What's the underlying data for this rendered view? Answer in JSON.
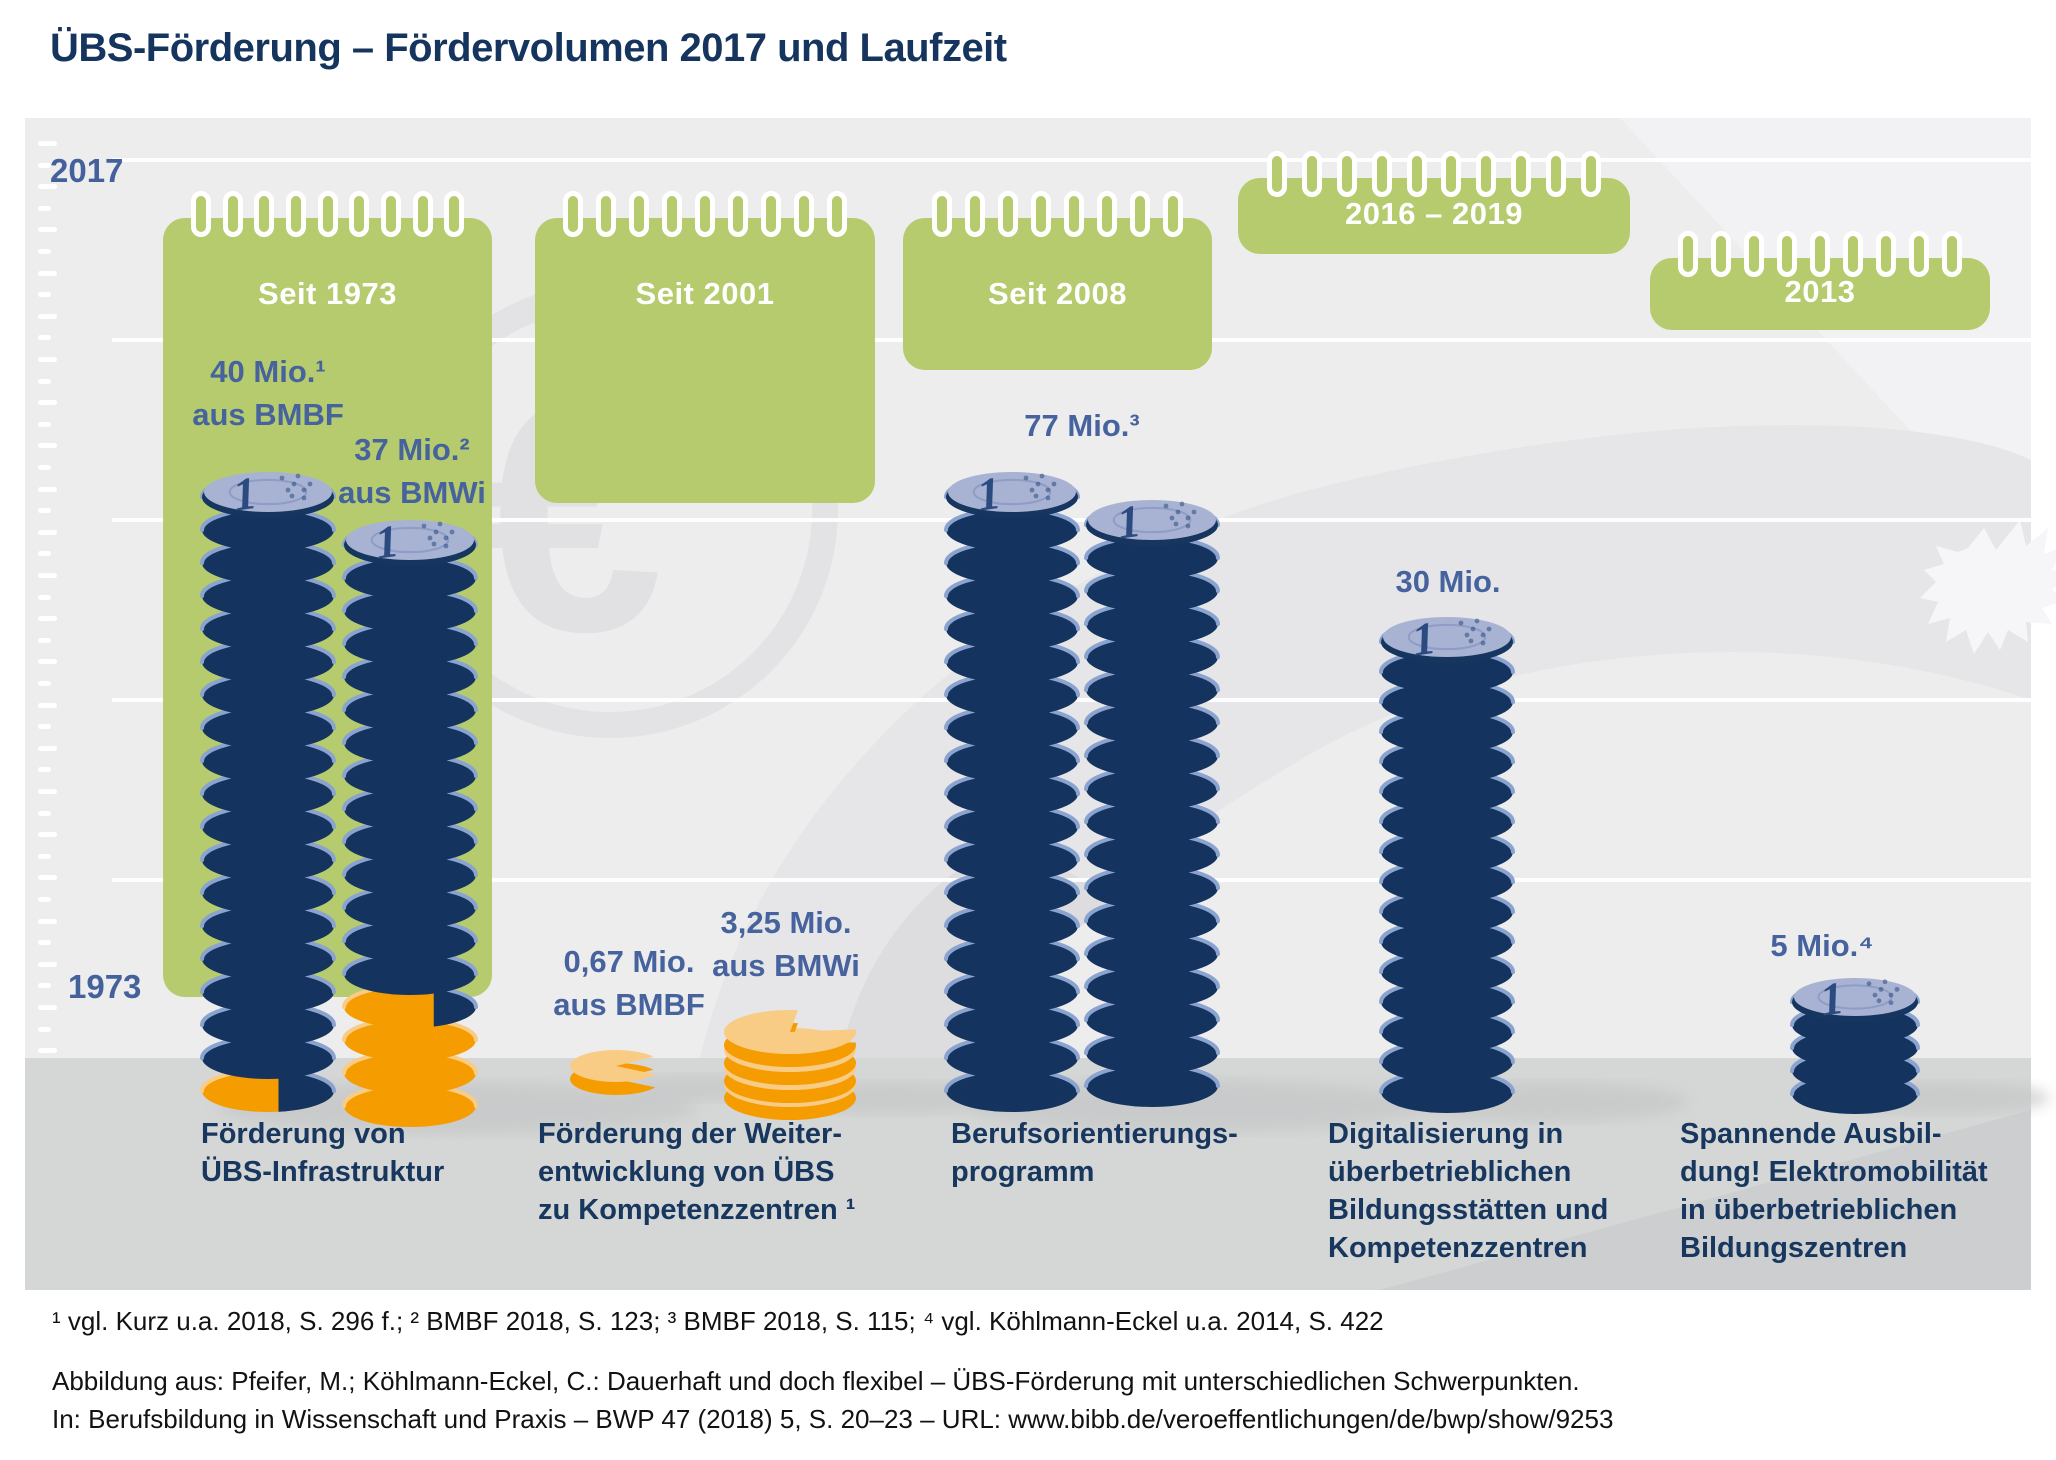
{
  "page": {
    "title": "ÜBS-Förderung – Fördervolumen 2017 und Laufzeit",
    "footnote": "¹ vgl. Kurz u.a. 2018, S. 296 f.; ² BMBF 2018, S. 123; ³ BMBF 2018, S. 115; ⁴ vgl. Köhlmann-Eckel u.a. 2014, S. 422",
    "source_line1": "Abbildung aus: Pfeifer, M.; Köhlmann-Eckel, C.: Dauerhaft und doch flexibel – ÜBS-Förderung mit unterschiedlichen Schwerpunkten.",
    "source_line2": "In: Berufsbildung in Wissenschaft und Praxis – BWP 47 (2018) 5, S. 20–23 – URL: www.bibb.de/veroeffentlichungen/de/bwp/show/9253"
  },
  "colors": {
    "accent_green": "#b5cb6d",
    "title_navy": "#16355e",
    "label_blue": "#47639e",
    "category_navy": "#17375e",
    "coin_navy": "#14345f",
    "coin_rim_navy": "#17365f",
    "coin_arc_blue": "#8ba3cf",
    "coin_face_blue": "#a8b3d3",
    "coin_face_detail": "#2a4a80",
    "coin_orange": "#f59c00",
    "coin_orange_face": "#f8cc85",
    "bg_sky": "#ededee",
    "bg_floor": "#d5d6d6",
    "shadow_gray": "#c6c7c8"
  },
  "chart_data": {
    "type": "bar",
    "subtype": "pictorial coin-stack infographic",
    "title": "ÜBS-Förderung – Fördervolumen 2017 und Laufzeit",
    "unit": "Mio. Euro (Fördervolumen 2017)",
    "y_axis": {
      "top": "2017",
      "bottom": "1973"
    },
    "periods": [
      {
        "label": "Seit 1973"
      },
      {
        "label": "Seit 2001"
      },
      {
        "label": "Seit 2008"
      },
      {
        "label": "2016 – 2019"
      },
      {
        "label": "2013"
      }
    ],
    "groups": [
      {
        "category": [
          "Förderung von",
          "ÜBS-Infrastruktur"
        ],
        "period": "Seit 1973",
        "values": [
          {
            "label_lines": [
              "40 Mio.¹",
              "aus BMBF"
            ],
            "value_mio": 40,
            "funder": "BMBF"
          },
          {
            "label_lines": [
              "37 Mio.²",
              "aus BMWi"
            ],
            "value_mio": 37,
            "funder": "BMWi"
          }
        ]
      },
      {
        "category": [
          "Förderung der Weiter-",
          "entwicklung von ÜBS",
          "zu Kompetenzzentren ¹"
        ],
        "period": "Seit 2001",
        "values": [
          {
            "label_lines": [
              "0,67 Mio.",
              "aus BMBF"
            ],
            "value_mio": 0.67,
            "funder": "BMBF"
          },
          {
            "label_lines": [
              "3,25 Mio.",
              "aus BMWi"
            ],
            "value_mio": 3.25,
            "funder": "BMWi"
          }
        ]
      },
      {
        "category": [
          "Berufsorientierungs-",
          "programm"
        ],
        "period": "Seit 2008",
        "values": [
          {
            "label_lines": [
              "77 Mio.³"
            ],
            "value_mio": 77,
            "funder": ""
          }
        ]
      },
      {
        "category": [
          "Digitalisierung in",
          "überbetrieblichen",
          "Bildungsstätten und",
          "Kompetenzzentren"
        ],
        "period": "2016 – 2019",
        "values": [
          {
            "label_lines": [
              "30 Mio."
            ],
            "value_mio": 30,
            "funder": ""
          }
        ]
      },
      {
        "category": [
          "Spannende Ausbil-",
          "dung! Elektromobilität",
          "in überbetrieblichen",
          "Bildungszentren"
        ],
        "period": "2013",
        "values": [
          {
            "label_lines": [
              "5 Mio.⁴"
            ],
            "value_mio": 5,
            "funder": ""
          }
        ]
      }
    ]
  }
}
